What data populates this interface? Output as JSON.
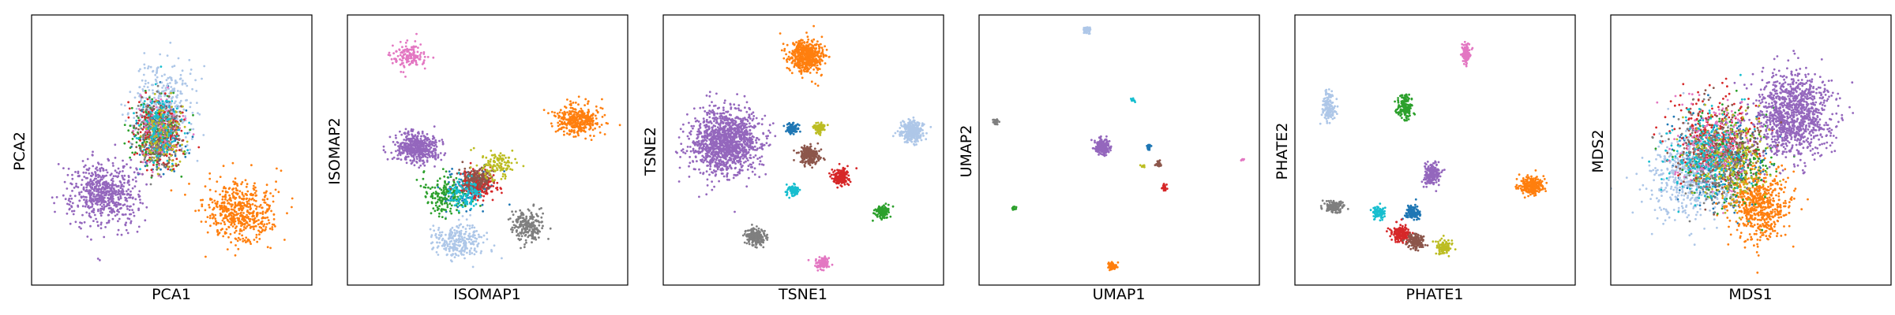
{
  "chart_data": [
    {
      "type": "scatter",
      "xlabel": "PCA1",
      "ylabel": "PCA2",
      "xlim": [
        0,
        1
      ],
      "ylim": [
        0,
        1
      ],
      "grid": false,
      "clusters": [
        {
          "color": "#1f77b4",
          "center": [
            0.46,
            0.56
          ],
          "spread": [
            0.08,
            0.13
          ],
          "n": 180
        },
        {
          "color": "#ff7f0e",
          "center": [
            0.74,
            0.27
          ],
          "spread": [
            0.11,
            0.1
          ],
          "n": 520
        },
        {
          "color": "#aec7e8",
          "center": [
            0.48,
            0.68
          ],
          "spread": [
            0.1,
            0.14
          ],
          "n": 300
        },
        {
          "color": "#2ca02c",
          "center": [
            0.44,
            0.57
          ],
          "spread": [
            0.08,
            0.12
          ],
          "n": 180
        },
        {
          "color": "#d62728",
          "center": [
            0.45,
            0.57
          ],
          "spread": [
            0.08,
            0.12
          ],
          "n": 180
        },
        {
          "color": "#9467bd",
          "center": [
            0.26,
            0.34
          ],
          "spread": [
            0.11,
            0.11
          ],
          "n": 620
        },
        {
          "color": "#8c564b",
          "center": [
            0.46,
            0.56
          ],
          "spread": [
            0.07,
            0.11
          ],
          "n": 160
        },
        {
          "color": "#e377c2",
          "center": [
            0.46,
            0.56
          ],
          "spread": [
            0.07,
            0.11
          ],
          "n": 120
        },
        {
          "color": "#7f7f7f",
          "center": [
            0.45,
            0.56
          ],
          "spread": [
            0.07,
            0.11
          ],
          "n": 120
        },
        {
          "color": "#bcbd22",
          "center": [
            0.47,
            0.55
          ],
          "spread": [
            0.07,
            0.11
          ],
          "n": 120
        },
        {
          "color": "#17becf",
          "center": [
            0.45,
            0.58
          ],
          "spread": [
            0.07,
            0.11
          ],
          "n": 120
        }
      ]
    },
    {
      "type": "scatter",
      "xlabel": "ISOMAP1",
      "ylabel": "ISOMAP2",
      "xlim": [
        0,
        1
      ],
      "ylim": [
        0,
        1
      ],
      "grid": false,
      "clusters": [
        {
          "color": "#1f77b4",
          "center": [
            0.43,
            0.36
          ],
          "spread": [
            0.08,
            0.06
          ],
          "n": 120
        },
        {
          "color": "#ff7f0e",
          "center": [
            0.82,
            0.61
          ],
          "spread": [
            0.07,
            0.05
          ],
          "n": 360
        },
        {
          "color": "#aec7e8",
          "center": [
            0.4,
            0.16
          ],
          "spread": [
            0.08,
            0.06
          ],
          "n": 260
        },
        {
          "color": "#2ca02c",
          "center": [
            0.35,
            0.34
          ],
          "spread": [
            0.08,
            0.07
          ],
          "n": 180
        },
        {
          "color": "#d62728",
          "center": [
            0.47,
            0.37
          ],
          "spread": [
            0.06,
            0.05
          ],
          "n": 200
        },
        {
          "color": "#9467bd",
          "center": [
            0.25,
            0.51
          ],
          "spread": [
            0.07,
            0.05
          ],
          "n": 480
        },
        {
          "color": "#8c564b",
          "center": [
            0.46,
            0.39
          ],
          "spread": [
            0.05,
            0.04
          ],
          "n": 150
        },
        {
          "color": "#e377c2",
          "center": [
            0.22,
            0.85
          ],
          "spread": [
            0.06,
            0.04
          ],
          "n": 150
        },
        {
          "color": "#7f7f7f",
          "center": [
            0.64,
            0.22
          ],
          "spread": [
            0.05,
            0.05
          ],
          "n": 220
        },
        {
          "color": "#bcbd22",
          "center": [
            0.53,
            0.44
          ],
          "spread": [
            0.06,
            0.05
          ],
          "n": 120
        },
        {
          "color": "#17becf",
          "center": [
            0.42,
            0.34
          ],
          "spread": [
            0.06,
            0.05
          ],
          "n": 110
        }
      ]
    },
    {
      "type": "scatter",
      "xlabel": "TSNE1",
      "ylabel": "TSNE2",
      "xlim": [
        0,
        1
      ],
      "ylim": [
        0,
        1
      ],
      "grid": false,
      "clusters": [
        {
          "color": "#1f77b4",
          "center": [
            0.46,
            0.58
          ],
          "spread": [
            0.018,
            0.018
          ],
          "n": 90
        },
        {
          "color": "#ff7f0e",
          "center": [
            0.51,
            0.85
          ],
          "spread": [
            0.055,
            0.055
          ],
          "n": 520
        },
        {
          "color": "#aec7e8",
          "center": [
            0.89,
            0.57
          ],
          "spread": [
            0.038,
            0.035
          ],
          "n": 300
        },
        {
          "color": "#2ca02c",
          "center": [
            0.78,
            0.27
          ],
          "spread": [
            0.022,
            0.022
          ],
          "n": 120
        },
        {
          "color": "#d62728",
          "center": [
            0.63,
            0.4
          ],
          "spread": [
            0.028,
            0.028
          ],
          "n": 180
        },
        {
          "color": "#9467bd",
          "center": [
            0.22,
            0.53
          ],
          "spread": [
            0.105,
            0.105
          ],
          "n": 1300
        },
        {
          "color": "#8c564b",
          "center": [
            0.52,
            0.48
          ],
          "spread": [
            0.035,
            0.03
          ],
          "n": 220
        },
        {
          "color": "#e377c2",
          "center": [
            0.57,
            0.08
          ],
          "spread": [
            0.022,
            0.02
          ],
          "n": 110
        },
        {
          "color": "#7f7f7f",
          "center": [
            0.33,
            0.18
          ],
          "spread": [
            0.03,
            0.03
          ],
          "n": 200
        },
        {
          "color": "#bcbd22",
          "center": [
            0.56,
            0.58
          ],
          "spread": [
            0.018,
            0.016
          ],
          "n": 80
        },
        {
          "color": "#17becf",
          "center": [
            0.46,
            0.35
          ],
          "spread": [
            0.02,
            0.018
          ],
          "n": 80
        }
      ]
    },
    {
      "type": "scatter",
      "xlabel": "UMAP1",
      "ylabel": "UMAP2",
      "xlim": [
        0,
        1
      ],
      "ylim": [
        0,
        1
      ],
      "grid": false,
      "clusters": [
        {
          "color": "#1f77b4",
          "center": [
            0.605,
            0.51
          ],
          "spread": [
            0.008,
            0.008
          ],
          "n": 25
        },
        {
          "color": "#ff7f0e",
          "center": [
            0.475,
            0.07
          ],
          "spread": [
            0.013,
            0.013
          ],
          "n": 90
        },
        {
          "color": "#aec7e8",
          "center": [
            0.385,
            0.945
          ],
          "spread": [
            0.01,
            0.01
          ],
          "n": 55
        },
        {
          "color": "#2ca02c",
          "center": [
            0.125,
            0.285
          ],
          "spread": [
            0.007,
            0.007
          ],
          "n": 22
        },
        {
          "color": "#d62728",
          "center": [
            0.66,
            0.36
          ],
          "spread": [
            0.01,
            0.01
          ],
          "n": 30
        },
        {
          "color": "#9467bd",
          "center": [
            0.44,
            0.51
          ],
          "spread": [
            0.025,
            0.025
          ],
          "n": 220
        },
        {
          "color": "#8c564b",
          "center": [
            0.64,
            0.45
          ],
          "spread": [
            0.01,
            0.01
          ],
          "n": 30
        },
        {
          "color": "#e377c2",
          "center": [
            0.94,
            0.465
          ],
          "spread": [
            0.005,
            0.005
          ],
          "n": 10
        },
        {
          "color": "#7f7f7f",
          "center": [
            0.06,
            0.605
          ],
          "spread": [
            0.009,
            0.009
          ],
          "n": 25
        },
        {
          "color": "#bcbd22",
          "center": [
            0.585,
            0.44
          ],
          "spread": [
            0.007,
            0.005
          ],
          "n": 12
        },
        {
          "color": "#17becf",
          "center": [
            0.55,
            0.685
          ],
          "spread": [
            0.006,
            0.006
          ],
          "n": 12
        }
      ]
    },
    {
      "type": "scatter",
      "xlabel": "PHATE1",
      "ylabel": "PHATE2",
      "xlim": [
        0,
        1
      ],
      "ylim": [
        0,
        1
      ],
      "grid": false,
      "clusters": [
        {
          "color": "#1f77b4",
          "center": [
            0.42,
            0.27
          ],
          "spread": [
            0.025,
            0.025
          ],
          "n": 110
        },
        {
          "color": "#ff7f0e",
          "center": [
            0.84,
            0.37
          ],
          "spread": [
            0.04,
            0.03
          ],
          "n": 220
        },
        {
          "color": "#aec7e8",
          "center": [
            0.12,
            0.66
          ],
          "spread": [
            0.022,
            0.05
          ],
          "n": 150
        },
        {
          "color": "#2ca02c",
          "center": [
            0.39,
            0.66
          ],
          "spread": [
            0.025,
            0.04
          ],
          "n": 160
        },
        {
          "color": "#d62728",
          "center": [
            0.38,
            0.19
          ],
          "spread": [
            0.03,
            0.025
          ],
          "n": 200
        },
        {
          "color": "#9467bd",
          "center": [
            0.49,
            0.41
          ],
          "spread": [
            0.025,
            0.035
          ],
          "n": 180
        },
        {
          "color": "#8c564b",
          "center": [
            0.43,
            0.16
          ],
          "spread": [
            0.03,
            0.025
          ],
          "n": 140
        },
        {
          "color": "#e377c2",
          "center": [
            0.61,
            0.86
          ],
          "spread": [
            0.015,
            0.035
          ],
          "n": 120
        },
        {
          "color": "#7f7f7f",
          "center": [
            0.14,
            0.29
          ],
          "spread": [
            0.03,
            0.02
          ],
          "n": 140
        },
        {
          "color": "#bcbd22",
          "center": [
            0.53,
            0.14
          ],
          "spread": [
            0.025,
            0.025
          ],
          "n": 110
        },
        {
          "color": "#17becf",
          "center": [
            0.3,
            0.27
          ],
          "spread": [
            0.02,
            0.022
          ],
          "n": 90
        }
      ]
    },
    {
      "type": "scatter",
      "xlabel": "MDS1",
      "ylabel": "MDS2",
      "xlim": [
        0,
        1
      ],
      "ylim": [
        0,
        1
      ],
      "grid": false,
      "clusters": [
        {
          "color": "#1f77b4",
          "center": [
            0.4,
            0.45
          ],
          "spread": [
            0.14,
            0.16
          ],
          "n": 260
        },
        {
          "color": "#ff7f0e",
          "center": [
            0.53,
            0.3
          ],
          "spread": [
            0.1,
            0.12
          ],
          "n": 600
        },
        {
          "color": "#aec7e8",
          "center": [
            0.28,
            0.4
          ],
          "spread": [
            0.13,
            0.14
          ],
          "n": 500
        },
        {
          "color": "#2ca02c",
          "center": [
            0.42,
            0.48
          ],
          "spread": [
            0.15,
            0.16
          ],
          "n": 260
        },
        {
          "color": "#d62728",
          "center": [
            0.37,
            0.55
          ],
          "spread": [
            0.13,
            0.15
          ],
          "n": 260
        },
        {
          "color": "#9467bd",
          "center": [
            0.65,
            0.63
          ],
          "spread": [
            0.13,
            0.14
          ],
          "n": 1100
        },
        {
          "color": "#8c564b",
          "center": [
            0.4,
            0.5
          ],
          "spread": [
            0.13,
            0.15
          ],
          "n": 240
        },
        {
          "color": "#e377c2",
          "center": [
            0.38,
            0.52
          ],
          "spread": [
            0.13,
            0.15
          ],
          "n": 200
        },
        {
          "color": "#7f7f7f",
          "center": [
            0.36,
            0.46
          ],
          "spread": [
            0.13,
            0.15
          ],
          "n": 200
        },
        {
          "color": "#bcbd22",
          "center": [
            0.42,
            0.46
          ],
          "spread": [
            0.13,
            0.15
          ],
          "n": 200
        },
        {
          "color": "#17becf",
          "center": [
            0.34,
            0.47
          ],
          "spread": [
            0.13,
            0.15
          ],
          "n": 200
        }
      ]
    }
  ]
}
